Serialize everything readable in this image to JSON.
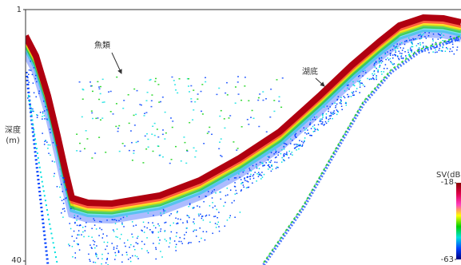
{
  "chart_data": {
    "type": "echogram",
    "ylabel": [
      "深度",
      "(m)"
    ],
    "ylim": [
      1,
      40
    ],
    "yticks": [
      1,
      40
    ],
    "y_inverted": true,
    "annotations": [
      "魚類",
      "湖底"
    ],
    "colorbar": {
      "label": "SV(dB)",
      "lim": [
        -63,
        -18
      ],
      "ticks": [
        -18,
        -63
      ],
      "colors": [
        "#8b0000",
        "#e0004a",
        "#ff40c0",
        "#ffff00",
        "#00d000",
        "#00e0e0",
        "#0040ff",
        "#000080"
      ]
    }
  }
}
